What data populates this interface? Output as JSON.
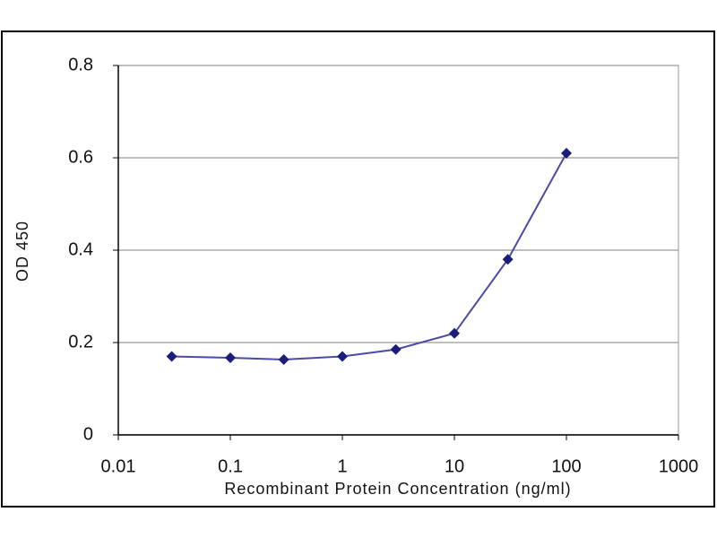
{
  "chart_data": {
    "type": "line",
    "xlabel": "Recombinant Protein Concentration (ng/ml)",
    "ylabel": "OD 450",
    "x": [
      0.03,
      0.1,
      0.3,
      1,
      3,
      10,
      30,
      100
    ],
    "values": [
      0.17,
      0.167,
      0.163,
      0.17,
      0.185,
      0.22,
      0.38,
      0.61
    ],
    "color": "#1c1c7a",
    "log_x": true,
    "xlim": [
      0.01,
      1000
    ],
    "xticks": [
      0.01,
      0.1,
      1,
      10,
      100,
      1000
    ],
    "ylim": [
      0,
      0.8
    ],
    "yticks": [
      0,
      0.2,
      0.4,
      0.6,
      0.8
    ],
    "grid": true
  }
}
